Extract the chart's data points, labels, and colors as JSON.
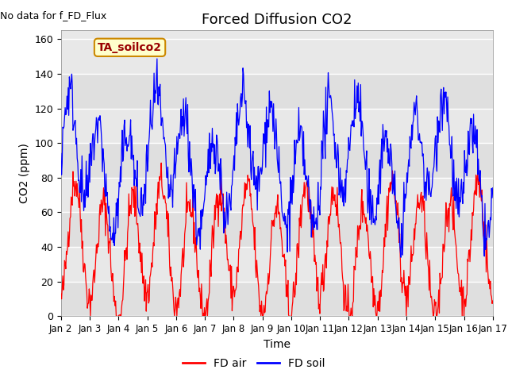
{
  "title": "Forced Diffusion CO2",
  "no_data_text": "No data for f_FD_Flux",
  "legend_box_text": "TA_soilco2",
  "xlabel": "Time",
  "ylabel": "CO2 (ppm)",
  "ylim": [
    0,
    165
  ],
  "yticks": [
    0,
    20,
    40,
    60,
    80,
    100,
    120,
    140,
    160
  ],
  "xtick_labels": [
    "Jan 2",
    "Jan 3",
    "Jan 4",
    "Jan 5",
    "Jan 6",
    "Jan 7",
    "Jan 8",
    "Jan 9",
    "Jan 10",
    "Jan 11",
    "Jan 12",
    "Jan 13",
    "Jan 14",
    "Jan 15",
    "Jan 16",
    "Jan 17"
  ],
  "color_air": "#FF0000",
  "color_soil": "#0000FF",
  "bg_color": "#E8E8E8",
  "title_fontsize": 13,
  "label_fontsize": 10,
  "tick_fontsize": 9,
  "legend_box_bg": "#FFFFCC",
  "legend_box_edge": "#CC8800",
  "legend_box_text_color": "#990000",
  "n_days": 15,
  "n_per_day": 48,
  "seed": 42
}
